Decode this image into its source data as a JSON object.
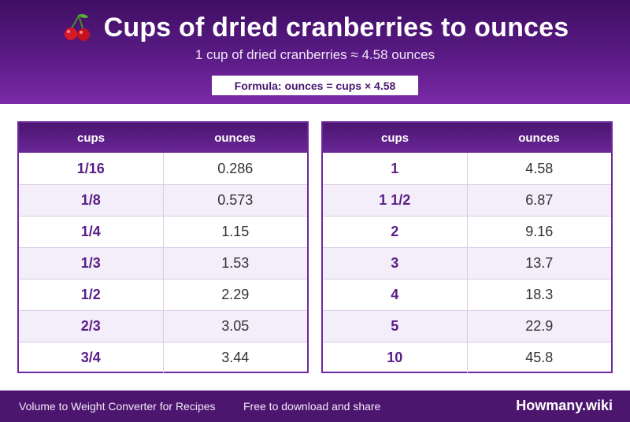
{
  "header": {
    "icon": "cherry-icon",
    "title": "Cups of dried cranberries to ounces",
    "subtitle": "1 cup of dried cranberries ≈ 4.58 ounces",
    "formula": "Formula: ounces = cups × 4.58"
  },
  "colors": {
    "header_dark": "#3f0f63",
    "header_light": "#7a2aa6",
    "accent": "#5a1e84",
    "footer": "#4c166f"
  },
  "tables": {
    "left": {
      "headers": [
        "cups",
        "ounces"
      ],
      "rows": [
        [
          "1/16",
          "0.286"
        ],
        [
          "1/8",
          "0.573"
        ],
        [
          "1/4",
          "1.15"
        ],
        [
          "1/3",
          "1.53"
        ],
        [
          "1/2",
          "2.29"
        ],
        [
          "2/3",
          "3.05"
        ],
        [
          "3/4",
          "3.44"
        ]
      ]
    },
    "right": {
      "headers": [
        "cups",
        "ounces"
      ],
      "rows": [
        [
          "1",
          "4.58"
        ],
        [
          "1 1/2",
          "6.87"
        ],
        [
          "2",
          "9.16"
        ],
        [
          "3",
          "13.7"
        ],
        [
          "4",
          "18.3"
        ],
        [
          "5",
          "22.9"
        ],
        [
          "10",
          "45.8"
        ]
      ]
    }
  },
  "footer": {
    "left_text": "Volume to Weight Converter for Recipes",
    "mid_text": "Free to download and share",
    "brand": "Howmany.wiki"
  }
}
